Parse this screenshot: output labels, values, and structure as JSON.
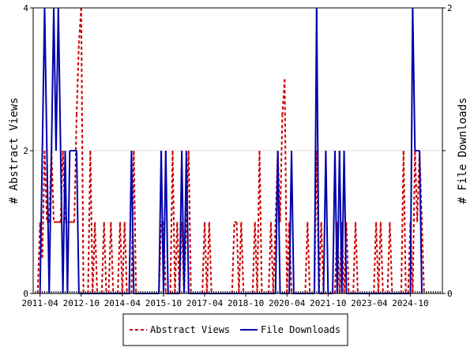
{
  "chart_data": {
    "type": "line",
    "x_ticks": [
      "2011-04",
      "2012-10",
      "2014-04",
      "2015-10",
      "2017-04",
      "2018-10",
      "2020-04",
      "2021-10",
      "2023-04",
      "2024-10"
    ],
    "x_range": [
      "2011-01",
      "2025-12"
    ],
    "y_left": {
      "label": "# Abstract Views",
      "ticks": [
        0,
        2,
        4
      ],
      "range": [
        0,
        4
      ]
    },
    "y_right": {
      "label": "# File Downloads",
      "ticks": [
        0,
        1,
        2
      ],
      "tick_labels": [
        "0",
        "",
        "2"
      ],
      "range": [
        0,
        2
      ]
    },
    "legend_position": "bottom-center",
    "series": [
      {
        "name": "Abstract Views",
        "axis": "left",
        "color": "#cc0000",
        "style": "dashed",
        "points": [
          [
            "2011-03",
            0
          ],
          [
            "2011-04",
            1
          ],
          [
            "2011-05",
            0.5
          ],
          [
            "2011-06",
            2
          ],
          [
            "2011-07",
            1
          ],
          [
            "2011-08",
            1
          ],
          [
            "2011-09",
            2
          ],
          [
            "2011-10",
            1
          ],
          [
            "2011-11",
            1
          ],
          [
            "2011-12",
            1
          ],
          [
            "2012-01",
            1
          ],
          [
            "2012-02",
            2
          ],
          [
            "2012-03",
            1
          ],
          [
            "2012-04",
            1
          ],
          [
            "2012-05",
            1
          ],
          [
            "2012-06",
            1
          ],
          [
            "2012-07",
            1
          ],
          [
            "2012-08",
            2.5
          ],
          [
            "2012-09",
            3.5
          ],
          [
            "2012-10",
            4
          ],
          [
            "2012-11",
            0
          ],
          [
            "2013-01",
            0
          ],
          [
            "2013-02",
            2
          ],
          [
            "2013-03",
            0
          ],
          [
            "2013-04",
            1
          ],
          [
            "2013-05",
            0
          ],
          [
            "2013-07",
            0
          ],
          [
            "2013-08",
            1
          ],
          [
            "2013-09",
            0
          ],
          [
            "2013-10",
            0
          ],
          [
            "2013-11",
            1
          ],
          [
            "2013-12",
            0
          ],
          [
            "2014-02",
            0
          ],
          [
            "2014-03",
            1
          ],
          [
            "2014-04",
            0
          ],
          [
            "2014-05",
            1
          ],
          [
            "2014-06",
            0
          ],
          [
            "2014-08",
            0
          ],
          [
            "2014-09",
            2
          ],
          [
            "2014-10",
            0
          ],
          [
            "2015-08",
            0
          ],
          [
            "2015-09",
            1
          ],
          [
            "2015-10",
            1
          ],
          [
            "2015-11",
            0
          ],
          [
            "2016-01",
            0
          ],
          [
            "2016-02",
            2
          ],
          [
            "2016-03",
            0
          ],
          [
            "2016-04",
            1
          ],
          [
            "2016-05",
            0
          ],
          [
            "2016-06",
            1
          ],
          [
            "2016-07",
            0
          ],
          [
            "2016-08",
            1
          ],
          [
            "2016-09",
            2
          ],
          [
            "2016-10",
            0
          ],
          [
            "2017-03",
            0
          ],
          [
            "2017-04",
            1
          ],
          [
            "2017-05",
            0
          ],
          [
            "2017-06",
            1
          ],
          [
            "2017-07",
            0
          ],
          [
            "2018-04",
            0
          ],
          [
            "2018-05",
            1
          ],
          [
            "2018-06",
            1
          ],
          [
            "2018-07",
            0
          ],
          [
            "2018-08",
            1
          ],
          [
            "2018-09",
            0
          ],
          [
            "2019-01",
            0
          ],
          [
            "2019-02",
            1
          ],
          [
            "2019-03",
            0
          ],
          [
            "2019-04",
            2
          ],
          [
            "2019-05",
            0
          ],
          [
            "2019-08",
            0
          ],
          [
            "2019-09",
            1
          ],
          [
            "2019-10",
            0
          ],
          [
            "2019-11",
            1
          ],
          [
            "2019-12",
            2
          ],
          [
            "2020-01",
            1
          ],
          [
            "2020-02",
            2.5
          ],
          [
            "2020-03",
            3
          ],
          [
            "2020-04",
            0
          ],
          [
            "2020-05",
            1
          ],
          [
            "2020-06",
            0
          ],
          [
            "2020-12",
            0
          ],
          [
            "2021-01",
            1
          ],
          [
            "2021-02",
            0
          ],
          [
            "2021-04",
            0
          ],
          [
            "2021-05",
            2
          ],
          [
            "2021-06",
            0
          ],
          [
            "2021-07",
            1
          ],
          [
            "2021-08",
            0
          ],
          [
            "2022-01",
            0
          ],
          [
            "2022-02",
            1
          ],
          [
            "2022-03",
            0
          ],
          [
            "2022-04",
            1
          ],
          [
            "2022-05",
            0
          ],
          [
            "2022-06",
            1
          ],
          [
            "2022-07",
            0
          ],
          [
            "2022-09",
            0
          ],
          [
            "2022-10",
            1
          ],
          [
            "2022-11",
            0
          ],
          [
            "2023-06",
            0
          ],
          [
            "2023-07",
            1
          ],
          [
            "2023-08",
            0
          ],
          [
            "2023-09",
            1
          ],
          [
            "2023-10",
            0
          ],
          [
            "2023-12",
            0
          ],
          [
            "2024-01",
            1
          ],
          [
            "2024-02",
            0
          ],
          [
            "2024-06",
            0
          ],
          [
            "2024-07",
            2
          ],
          [
            "2024-08",
            0
          ],
          [
            "2024-09",
            0
          ],
          [
            "2024-10",
            1
          ],
          [
            "2024-11",
            0
          ],
          [
            "2024-12",
            2
          ],
          [
            "2025-01",
            1
          ],
          [
            "2025-02",
            2
          ],
          [
            "2025-03",
            1
          ],
          [
            "2025-04",
            0
          ]
        ]
      },
      {
        "name": "File Downloads",
        "axis": "right",
        "color": "#0000aa",
        "style": "solid",
        "points": [
          [
            "2011-04",
            0
          ],
          [
            "2011-05",
            1
          ],
          [
            "2011-06",
            2
          ],
          [
            "2011-07",
            1
          ],
          [
            "2011-08",
            0
          ],
          [
            "2011-09",
            1
          ],
          [
            "2011-10",
            2
          ],
          [
            "2011-11",
            1
          ],
          [
            "2011-12",
            2
          ],
          [
            "2012-01",
            1
          ],
          [
            "2012-02",
            0
          ],
          [
            "2012-03",
            1
          ],
          [
            "2012-04",
            0
          ],
          [
            "2012-05",
            1
          ],
          [
            "2012-06",
            1
          ],
          [
            "2012-07",
            1
          ],
          [
            "2012-08",
            1
          ],
          [
            "2012-09",
            0
          ],
          [
            "2014-07",
            0
          ],
          [
            "2014-08",
            1
          ],
          [
            "2014-09",
            0
          ],
          [
            "2015-08",
            0
          ],
          [
            "2015-09",
            1
          ],
          [
            "2015-10",
            0
          ],
          [
            "2015-11",
            1
          ],
          [
            "2015-12",
            0
          ],
          [
            "2016-05",
            0
          ],
          [
            "2016-06",
            1
          ],
          [
            "2016-07",
            0
          ],
          [
            "2016-08",
            1
          ],
          [
            "2016-09",
            0
          ],
          [
            "2019-11",
            0
          ],
          [
            "2019-12",
            1
          ],
          [
            "2020-01",
            0
          ],
          [
            "2020-05",
            0
          ],
          [
            "2020-06",
            1
          ],
          [
            "2020-07",
            0
          ],
          [
            "2021-04",
            0
          ],
          [
            "2021-05",
            2
          ],
          [
            "2021-06",
            0
          ],
          [
            "2021-08",
            0
          ],
          [
            "2021-09",
            1
          ],
          [
            "2021-10",
            0
          ],
          [
            "2021-12",
            0
          ],
          [
            "2022-01",
            1
          ],
          [
            "2022-02",
            0
          ],
          [
            "2022-03",
            1
          ],
          [
            "2022-04",
            0
          ],
          [
            "2022-05",
            1
          ],
          [
            "2022-06",
            0
          ],
          [
            "2024-10",
            0
          ],
          [
            "2024-11",
            2
          ],
          [
            "2024-12",
            1
          ],
          [
            "2025-01",
            1
          ],
          [
            "2025-02",
            1
          ],
          [
            "2025-03",
            0
          ]
        ]
      }
    ]
  }
}
